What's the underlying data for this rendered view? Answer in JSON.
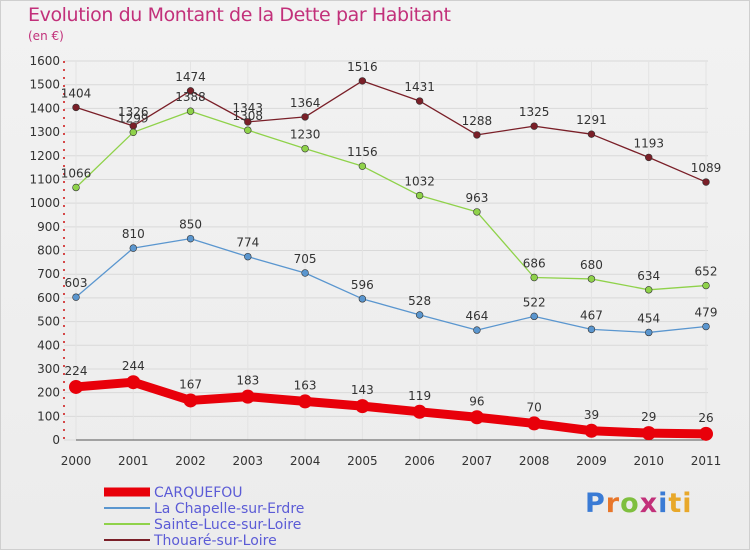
{
  "header": {
    "title": "Evolution du Montant de la Dette par Habitant",
    "unit": "(en €)"
  },
  "brand": {
    "letters": [
      "P",
      "r",
      "o",
      "x",
      "i",
      "ti"
    ]
  },
  "chart_data": {
    "type": "line",
    "title": "Evolution du Montant de la Dette par Habitant",
    "subtitle": "(en €)",
    "x": [
      2000,
      2001,
      2002,
      2003,
      2004,
      2005,
      2006,
      2007,
      2008,
      2009,
      2010,
      2011
    ],
    "ylim": [
      0,
      1600
    ],
    "yticks": [
      0,
      100,
      200,
      300,
      400,
      500,
      600,
      700,
      800,
      900,
      1000,
      1100,
      1200,
      1300,
      1400,
      1500,
      1600
    ],
    "grid": true,
    "legend_position": "bottom-left",
    "series": [
      {
        "name": "CARQUEFOU",
        "color": "#e8000a",
        "values": [
          224,
          244,
          167,
          183,
          163,
          143,
          119,
          96,
          70,
          39,
          29,
          26
        ]
      },
      {
        "name": "La Chapelle-sur-Erdre",
        "color": "#5a96cf",
        "values": [
          603,
          810,
          850,
          774,
          705,
          596,
          528,
          464,
          522,
          467,
          454,
          479
        ]
      },
      {
        "name": "Sainte-Luce-sur-Loire",
        "color": "#8fd24a",
        "values": [
          1066,
          1299,
          1388,
          1308,
          1230,
          1156,
          1032,
          963,
          686,
          680,
          634,
          652
        ]
      },
      {
        "name": "Thouaré-sur-Loire",
        "color": "#7a1f28",
        "values": [
          1404,
          1326,
          1474,
          1343,
          1364,
          1516,
          1431,
          1288,
          1325,
          1291,
          1193,
          1089
        ]
      }
    ]
  }
}
